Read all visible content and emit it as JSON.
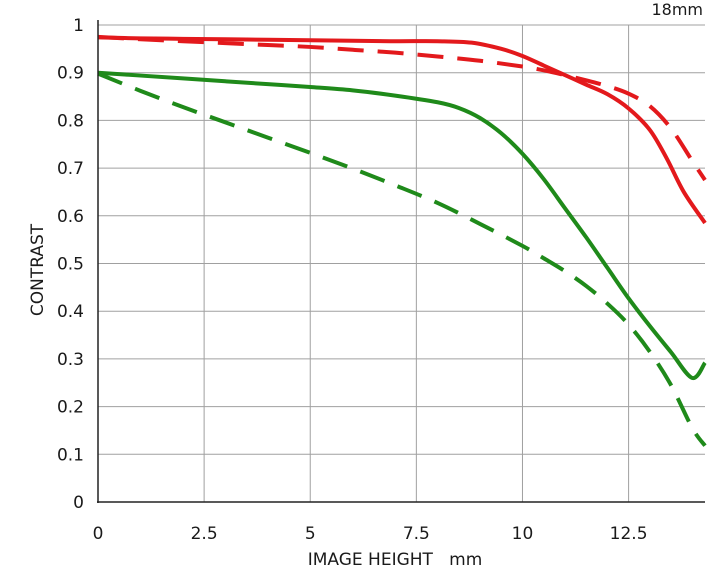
{
  "chart_data": {
    "type": "line",
    "title": "",
    "corner_label": "18mm",
    "xlabel": "IMAGE HEIGHT   mm",
    "ylabel": "CONTRAST",
    "xlim": [
      0,
      14.3
    ],
    "ylim": [
      0,
      1
    ],
    "x_ticks": [
      0,
      2.5,
      5,
      7.5,
      10,
      12.5
    ],
    "x_tick_labels": [
      "0",
      "2.5",
      "5",
      "7.5",
      "10",
      "12.5"
    ],
    "y_ticks": [
      0,
      0.1,
      0.2,
      0.3,
      0.4,
      0.5,
      0.6,
      0.7,
      0.8,
      0.9,
      1
    ],
    "y_tick_labels": [
      "0",
      "0.1",
      "0.2",
      "0.3",
      "0.4",
      "0.5",
      "0.6",
      "0.7",
      "0.8",
      "0.9",
      "1"
    ],
    "grid": true,
    "colors": {
      "red": "#e3191c",
      "green": "#1f8a1a",
      "grid": "#a0a0a0",
      "axis": "#222222"
    },
    "series": [
      {
        "color": "red",
        "dash": false,
        "points": [
          [
            0,
            0.974
          ],
          [
            1,
            0.972
          ],
          [
            2,
            0.971
          ],
          [
            3,
            0.97
          ],
          [
            4,
            0.969
          ],
          [
            5,
            0.968
          ],
          [
            6,
            0.967
          ],
          [
            7,
            0.966
          ],
          [
            8,
            0.966
          ],
          [
            8.8,
            0.963
          ],
          [
            9.5,
            0.95
          ],
          [
            10,
            0.935
          ],
          [
            10.5,
            0.915
          ],
          [
            11,
            0.895
          ],
          [
            11.5,
            0.875
          ],
          [
            12,
            0.855
          ],
          [
            12.5,
            0.825
          ],
          [
            13,
            0.78
          ],
          [
            13.4,
            0.72
          ],
          [
            13.8,
            0.65
          ],
          [
            14.3,
            0.585
          ]
        ]
      },
      {
        "color": "red",
        "dash": true,
        "points": [
          [
            0,
            0.975
          ],
          [
            1,
            0.97
          ],
          [
            2,
            0.966
          ],
          [
            3,
            0.962
          ],
          [
            4,
            0.958
          ],
          [
            5,
            0.954
          ],
          [
            6,
            0.948
          ],
          [
            7,
            0.942
          ],
          [
            8,
            0.934
          ],
          [
            9,
            0.925
          ],
          [
            10,
            0.913
          ],
          [
            10.5,
            0.905
          ],
          [
            11,
            0.895
          ],
          [
            11.5,
            0.884
          ],
          [
            12,
            0.872
          ],
          [
            12.5,
            0.856
          ],
          [
            13,
            0.83
          ],
          [
            13.5,
            0.783
          ],
          [
            14,
            0.715
          ],
          [
            14.3,
            0.675
          ]
        ]
      },
      {
        "color": "green",
        "dash": false,
        "points": [
          [
            0,
            0.9
          ],
          [
            1,
            0.894
          ],
          [
            2,
            0.888
          ],
          [
            3,
            0.882
          ],
          [
            4,
            0.876
          ],
          [
            5,
            0.87
          ],
          [
            6,
            0.863
          ],
          [
            7,
            0.852
          ],
          [
            8,
            0.838
          ],
          [
            8.5,
            0.826
          ],
          [
            9,
            0.805
          ],
          [
            9.5,
            0.773
          ],
          [
            10,
            0.73
          ],
          [
            10.5,
            0.677
          ],
          [
            11,
            0.616
          ],
          [
            11.5,
            0.555
          ],
          [
            12,
            0.491
          ],
          [
            12.5,
            0.427
          ],
          [
            13,
            0.369
          ],
          [
            13.5,
            0.314
          ],
          [
            14,
            0.26
          ],
          [
            14.3,
            0.292
          ]
        ]
      },
      {
        "color": "green",
        "dash": true,
        "points": [
          [
            0,
            0.898
          ],
          [
            1,
            0.862
          ],
          [
            2,
            0.828
          ],
          [
            3,
            0.796
          ],
          [
            4,
            0.764
          ],
          [
            5,
            0.732
          ],
          [
            6,
            0.699
          ],
          [
            7,
            0.664
          ],
          [
            8,
            0.627
          ],
          [
            9,
            0.583
          ],
          [
            10,
            0.537
          ],
          [
            10.5,
            0.511
          ],
          [
            11,
            0.484
          ],
          [
            11.5,
            0.453
          ],
          [
            12,
            0.416
          ],
          [
            12.5,
            0.372
          ],
          [
            13,
            0.315
          ],
          [
            13.5,
            0.245
          ],
          [
            14,
            0.155
          ],
          [
            14.3,
            0.118
          ]
        ]
      }
    ]
  }
}
